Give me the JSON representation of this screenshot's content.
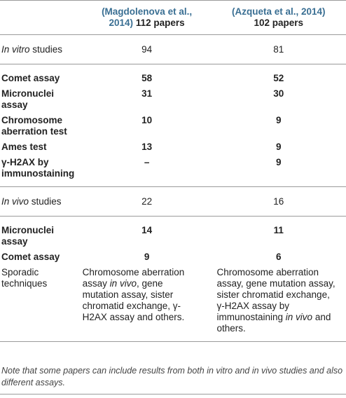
{
  "header": {
    "col2_cite_open": "(Magdolenova et al.,",
    "col2_cite_close": "2014)",
    "col2_papers": "112 papers",
    "col3_cite": "(Azqueta et al., 2014)",
    "col3_papers": "102 papers"
  },
  "in_vitro": {
    "label_italic": "In vitro",
    "label_rest": " studies",
    "col2": "94",
    "col3": "81",
    "rows": [
      {
        "label": "Comet assay",
        "col2": "58",
        "col3": "52"
      },
      {
        "label": "Micronuclei assay",
        "col2": "31",
        "col3": "30"
      },
      {
        "label": "Chromosome aberration test",
        "col2": "10",
        "col3": "9"
      },
      {
        "label": "Ames test",
        "col2": "13",
        "col3": "9"
      },
      {
        "label": "γ-H2AX by immunostaining",
        "col2": "–",
        "col3": "9"
      }
    ]
  },
  "in_vivo": {
    "label_italic": "In vivo",
    "label_rest": " studies",
    "col2": "22",
    "col3": "16",
    "rows": [
      {
        "label": "Micronuclei assay",
        "col2": "14",
        "col3": "11"
      },
      {
        "label": "Comet assay",
        "col2": "9",
        "col3": "6"
      }
    ]
  },
  "sporadic": {
    "label": "Sporadic techniques",
    "col2_a": "Chromosome aberration assay ",
    "col2_italic": "in vivo",
    "col2_b": ", gene mutation assay, sister chromatid exchange, γ-H2AX assay and others.",
    "col3_a": "Chromosome aberration assay, gene mutation assay, sister chromatid exchange, γ-H2AX assay by immunostaining ",
    "col3_italic": "in vivo",
    "col3_b": " and others."
  },
  "note": "Note that some papers can include results from both in vitro and in vivo studies and also different assays."
}
